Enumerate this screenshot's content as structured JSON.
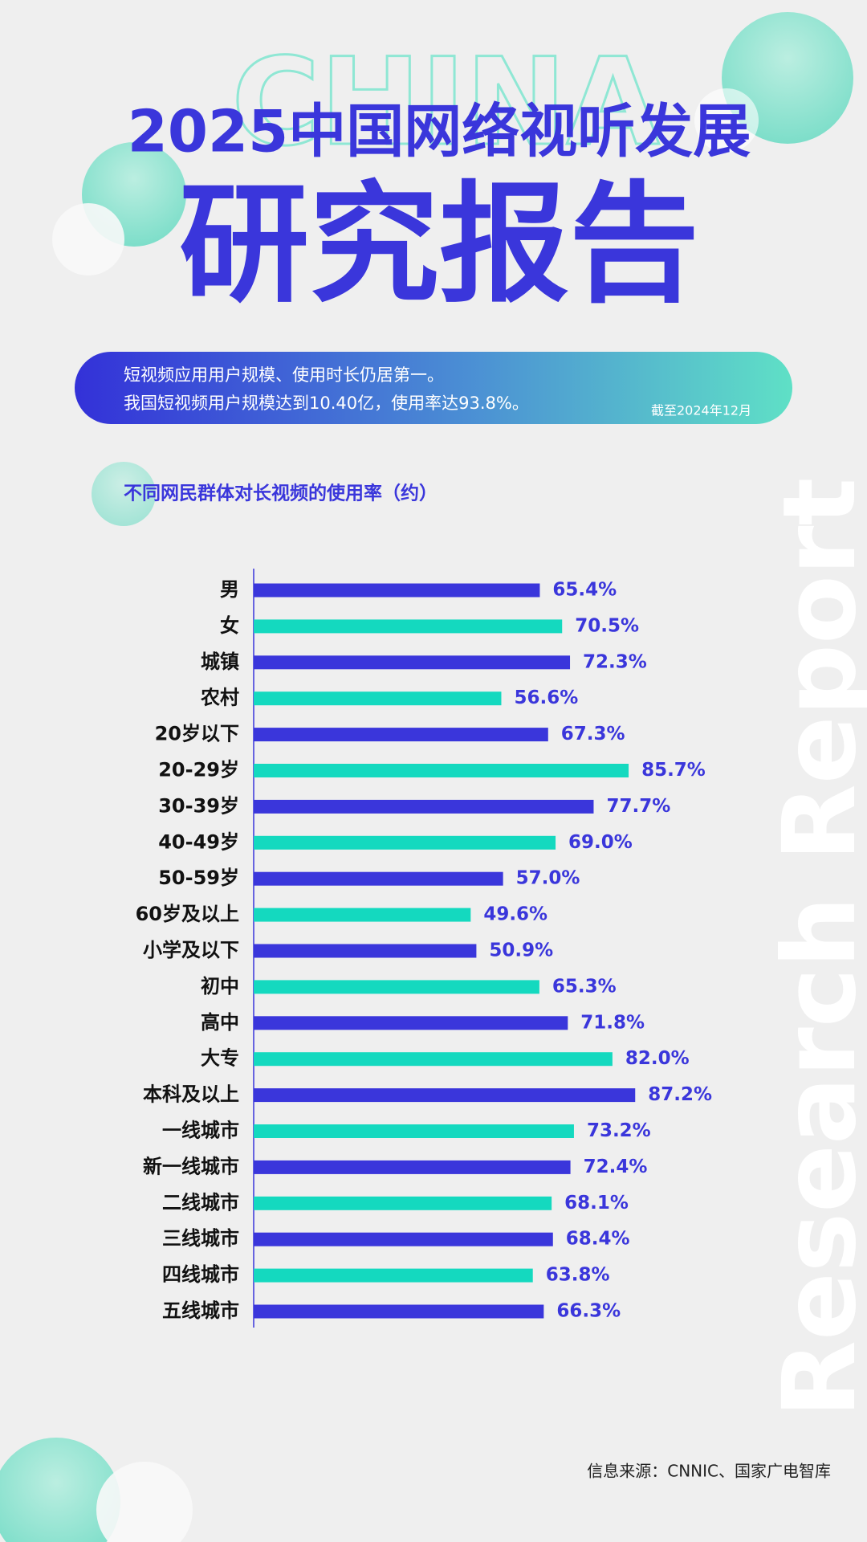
{
  "header": {
    "watermark": "CHINA",
    "title": "2025中国网络视听发展",
    "subtitle": "研究报告"
  },
  "banner": {
    "lines": [
      "短视频应用用户规模、使用时长仍居第一。",
      "我国短视频用户规模达到10.40亿，使用率达93.8%。"
    ],
    "date": "截至2024年12月"
  },
  "side_text": "Research Report",
  "source": "信息来源：CNNIC、国家广电智库",
  "chart_data": {
    "type": "hbar",
    "title": "不同网民群体对长视频的使用率（约）",
    "categories": [
      "男",
      "女",
      "城镇",
      "农村",
      "20岁以下",
      "20-29岁",
      "30-39岁",
      "40-49岁",
      "50-59岁",
      "60岁及以上",
      "小学及以下",
      "初中",
      "高中",
      "大专",
      "本科及以上",
      "一线城市",
      "新一线城市",
      "二线城市",
      "三线城市",
      "四线城市",
      "五线城市"
    ],
    "values": [
      65.4,
      70.5,
      72.3,
      56.6,
      67.3,
      85.7,
      77.7,
      69.0,
      57.0,
      49.6,
      50.9,
      65.3,
      71.8,
      82.0,
      87.2,
      73.2,
      72.4,
      68.1,
      68.4,
      63.8,
      66.3
    ],
    "value_labels": [
      "65.4%",
      "70.5%",
      "72.3%",
      "56.6%",
      "67.3%",
      "85.7%",
      "77.7%",
      "69.0%",
      "57.0%",
      "49.6%",
      "50.9%",
      "65.3%",
      "71.8%",
      "82.0%",
      "87.2%",
      "73.2%",
      "72.4%",
      "68.1%",
      "68.4%",
      "63.8%",
      "66.3%"
    ],
    "colors": [
      "#3a36db",
      "#14d9bf"
    ],
    "xlim": [
      0,
      100
    ]
  }
}
